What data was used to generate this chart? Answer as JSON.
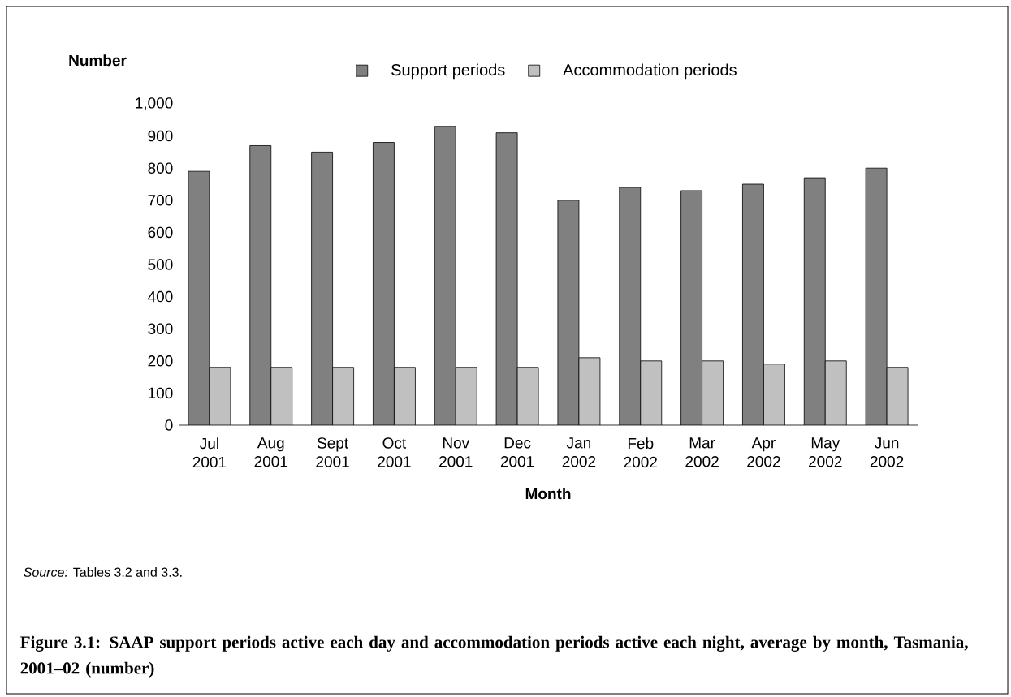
{
  "chart_data": {
    "type": "bar",
    "title": "Figure 3.1: SAAP support periods active each day and accommodation periods active each night, average by month, Tasmania, 2001–02 (number)",
    "xlabel": "Month",
    "ylabel": "Number",
    "categories": [
      "Jul 2001",
      "Aug 2001",
      "Sept 2001",
      "Oct 2001",
      "Nov 2001",
      "Dec 2001",
      "Jan 2002",
      "Feb 2002",
      "Mar 2002",
      "Apr 2002",
      "May 2002",
      "Jun 2002"
    ],
    "series": [
      {
        "name": "Support periods",
        "color": "#808080",
        "values": [
          790,
          870,
          850,
          880,
          930,
          910,
          700,
          740,
          730,
          750,
          770,
          800
        ]
      },
      {
        "name": "Accommodation periods",
        "color": "#c0c0c0",
        "values": [
          180,
          180,
          180,
          180,
          180,
          180,
          210,
          200,
          200,
          190,
          200,
          180
        ]
      }
    ],
    "ylim": [
      0,
      1000
    ],
    "yticks": [
      0,
      100,
      200,
      300,
      400,
      500,
      600,
      700,
      800,
      900,
      {
        "value": 1000,
        "label": "1,000"
      }
    ],
    "legend": "top",
    "annotations": [
      "*Source:* Tables 3.2 and 3.3."
    ]
  }
}
